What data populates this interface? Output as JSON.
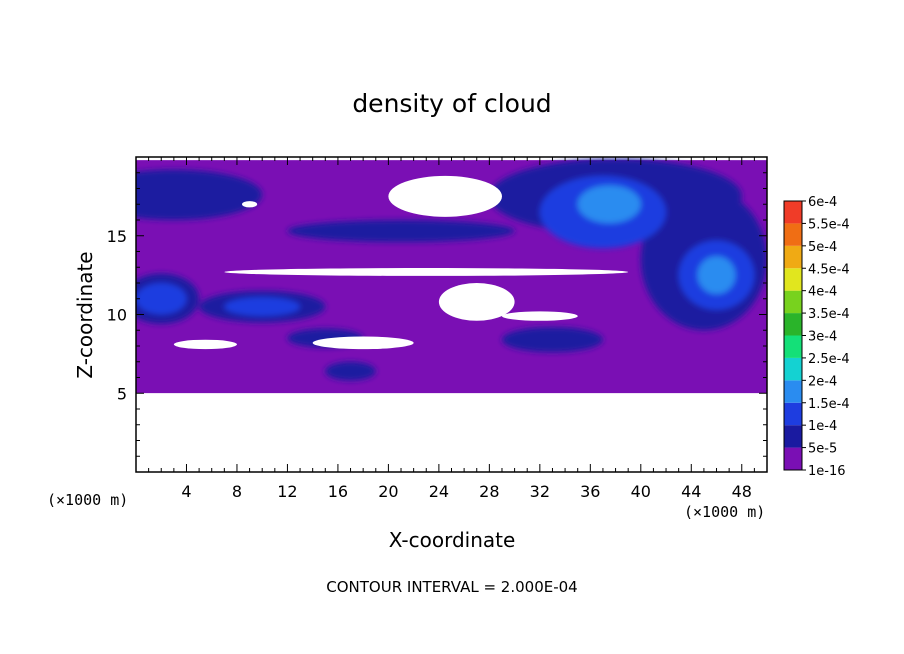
{
  "chart_data": {
    "type": "heatmap",
    "title": "density of cloud",
    "xlabel": "X-coordinate",
    "ylabel": "Z-coordinate",
    "x_unit_left": "(×1000 m)",
    "x_unit_right": "(×1000 m)",
    "footer": "CONTOUR INTERVAL = 2.000E-04",
    "xlim": [
      0,
      50
    ],
    "ylim": [
      0,
      20
    ],
    "xticks": [
      4,
      8,
      12,
      16,
      20,
      24,
      28,
      32,
      36,
      40,
      44,
      48
    ],
    "yticks": [
      5,
      10,
      15
    ],
    "colorbar": {
      "levels": [
        "1e-16",
        "5e-5",
        "1e-4",
        "1.5e-4",
        "2e-4",
        "2.5e-4",
        "3e-4",
        "3.5e-4",
        "4e-4",
        "4.5e-4",
        "5e-4",
        "5.5e-4",
        "6e-4"
      ],
      "colors": [
        "#7a0fb4",
        "#1a1aa0",
        "#1e3de0",
        "#2a8cf0",
        "#14d2d2",
        "#14e078",
        "#2ab42a",
        "#78d21e",
        "#e1e61e",
        "#f0aa14",
        "#f06e14",
        "#f03c28",
        "#f57878"
      ]
    },
    "field": {
      "background_color": "#7a0fb4",
      "domain_z": [
        5,
        19.8
      ],
      "empty_below_z": 5,
      "empty_color": "#ffffff",
      "features": [
        {
          "level": "5e-5",
          "x": 3,
          "z": 17.6,
          "rx": 7,
          "rz": 1.6
        },
        {
          "level": "5e-5",
          "x": 38,
          "z": 17.5,
          "rx": 10,
          "rz": 2.4
        },
        {
          "level": "5e-5",
          "x": 45,
          "z": 13.5,
          "rx": 5,
          "rz": 4.5
        },
        {
          "level": "5e-5",
          "x": 2,
          "z": 11,
          "rx": 3,
          "rz": 1.6
        },
        {
          "level": "5e-5",
          "x": 10,
          "z": 10.5,
          "rx": 5,
          "rz": 1
        },
        {
          "level": "5e-5",
          "x": 33,
          "z": 8.4,
          "rx": 4,
          "rz": 0.8
        },
        {
          "level": "5e-5",
          "x": 15,
          "z": 8.5,
          "rx": 3,
          "rz": 0.6
        },
        {
          "level": "5e-5",
          "x": 17,
          "z": 6.4,
          "rx": 2,
          "rz": 0.6
        },
        {
          "level": "5e-5",
          "x": 21,
          "z": 15.3,
          "rx": 9,
          "rz": 0.7
        },
        {
          "level": "1e-4",
          "x": 37,
          "z": 16.5,
          "rx": 5,
          "rz": 2.3
        },
        {
          "level": "1e-4",
          "x": 46,
          "z": 12.5,
          "rx": 3,
          "rz": 2.2
        },
        {
          "level": "1e-4",
          "x": 2,
          "z": 11,
          "rx": 2,
          "rz": 1
        },
        {
          "level": "1e-4",
          "x": 10,
          "z": 10.5,
          "rx": 3,
          "rz": 0.6
        },
        {
          "level": "1.5e-4",
          "x": 37.5,
          "z": 17,
          "rx": 2.5,
          "rz": 1.2
        },
        {
          "level": "1.5e-4",
          "x": 46,
          "z": 12.5,
          "rx": 1.5,
          "rz": 1.2
        }
      ],
      "gaps": [
        {
          "x": 24.5,
          "z": 17.5,
          "rx": 4.5,
          "rz": 1.3
        },
        {
          "x": 23,
          "z": 12.7,
          "rx": 16,
          "rz": 0.25
        },
        {
          "x": 27,
          "z": 10.8,
          "rx": 3,
          "rz": 1.2
        },
        {
          "x": 18,
          "z": 8.2,
          "rx": 4,
          "rz": 0.4
        },
        {
          "x": 5.5,
          "z": 8.1,
          "rx": 2.5,
          "rz": 0.3
        },
        {
          "x": 32,
          "z": 9.9,
          "rx": 3,
          "rz": 0.3
        },
        {
          "x": 9,
          "z": 17,
          "rx": 0.6,
          "rz": 0.2
        }
      ]
    }
  }
}
